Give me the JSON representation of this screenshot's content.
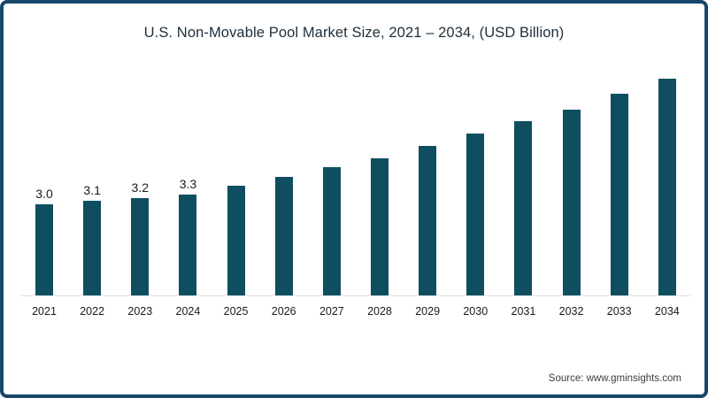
{
  "card": {
    "title": "U.S. Non-Movable Pool Market Size, 2021 – 2034, (USD Billion)",
    "source": "Source: www.gminsights.com"
  },
  "colors": {
    "bar": "#0e4e60",
    "border": "#17476b",
    "axis_line": "#e0e0e0",
    "title_text": "#20303c",
    "label_text": "#1a1a1a",
    "source_text": "#3c3c3c"
  },
  "chart_data": {
    "type": "bar",
    "title": "U.S. Non-Movable Pool Market Size, 2021 – 2034, (USD Billion)",
    "categories": [
      "2021",
      "2022",
      "2023",
      "2024",
      "2025",
      "2026",
      "2027",
      "2028",
      "2029",
      "2030",
      "2031",
      "2032",
      "2033",
      "2034"
    ],
    "values": [
      3.0,
      3.1,
      3.2,
      3.3,
      3.6,
      3.9,
      4.2,
      4.5,
      4.9,
      5.3,
      5.7,
      6.1,
      6.6,
      7.1
    ],
    "data_labels": [
      "3.0",
      "3.1",
      "3.2",
      "3.3",
      "",
      "",
      "",
      "",
      "",
      "",
      "",
      "",
      "",
      ""
    ],
    "xlabel": "",
    "ylabel": "USD Billion",
    "ylim": [
      0,
      7.5
    ],
    "grid": false,
    "legend": false,
    "y_axis_shown": false,
    "baseline_axis_shown": true
  }
}
